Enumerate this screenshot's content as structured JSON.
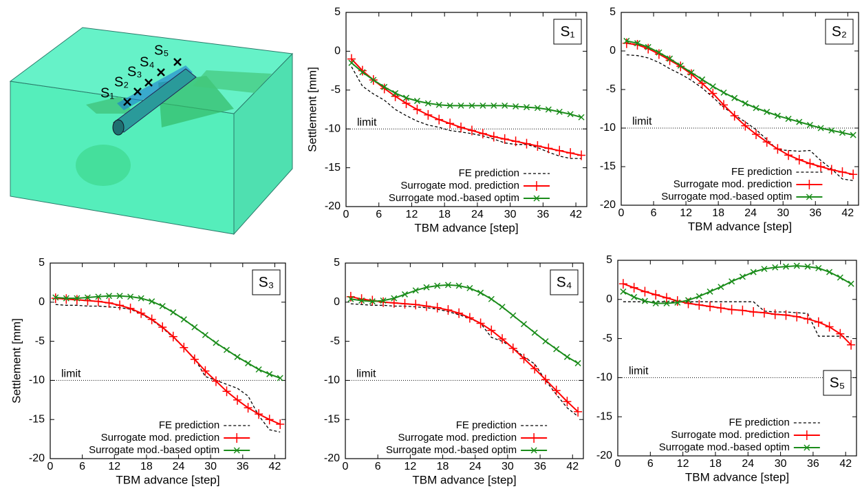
{
  "model": {
    "sensors": [
      "S₁",
      "S₂",
      "S₃",
      "S₄",
      "S₅"
    ]
  },
  "chart_data": [
    {
      "type": "line",
      "panel_label": "S₁",
      "panel_label_corner": "upper right",
      "ylabel": "Settlement [mm]",
      "xlabel": "TBM advance [step]",
      "x": [
        1,
        3,
        5,
        7,
        9,
        11,
        13,
        15,
        17,
        19,
        21,
        23,
        25,
        27,
        29,
        31,
        33,
        35,
        37,
        39,
        41,
        43
      ],
      "xlim": [
        0,
        44
      ],
      "xticks": [
        0,
        6,
        12,
        18,
        24,
        30,
        36,
        42
      ],
      "ylim": [
        -20,
        5
      ],
      "yticks": [
        -20,
        -15,
        -10,
        -5,
        0,
        5
      ],
      "hlines": [
        {
          "value": -10,
          "label": "limit"
        }
      ],
      "legend": "lower center",
      "series": [
        {
          "name": "FE prediction",
          "color": "#000000",
          "style": "dashed",
          "values": [
            -2,
            -4.5,
            -5.5,
            -6.3,
            -7.5,
            -8.3,
            -9,
            -9.5,
            -9.8,
            -10.2,
            -10.4,
            -10.6,
            -10.9,
            -11.3,
            -11.8,
            -12,
            -12,
            -12.4,
            -13,
            -13.5,
            -13.8,
            -13.8
          ]
        },
        {
          "name": "Surrogate mod. prediction",
          "color": "#ff0000",
          "marker": "plus",
          "values": [
            -1,
            -2.5,
            -3.7,
            -4.8,
            -5.8,
            -6.7,
            -7.5,
            -8.2,
            -8.8,
            -9.3,
            -9.8,
            -10.2,
            -10.6,
            -11,
            -11.3,
            -11.6,
            -11.9,
            -12.2,
            -12.5,
            -12.8,
            -13.1,
            -13.4
          ]
        },
        {
          "name": "Surrogate mod.-based optim",
          "color": "#1a8c1a",
          "marker": "cross",
          "values": [
            -1.5,
            -2.7,
            -3.7,
            -4.6,
            -5.4,
            -6,
            -6.4,
            -6.7,
            -6.9,
            -7,
            -7,
            -7,
            -7,
            -7,
            -7,
            -7.1,
            -7.2,
            -7.3,
            -7.5,
            -7.8,
            -8.1,
            -8.5
          ]
        }
      ]
    },
    {
      "type": "line",
      "panel_label": "S₂",
      "panel_label_corner": "upper right",
      "xlabel": "TBM advance [step]",
      "x": [
        1,
        3,
        5,
        7,
        9,
        11,
        13,
        15,
        17,
        19,
        21,
        23,
        25,
        27,
        29,
        31,
        33,
        35,
        37,
        39,
        41,
        43
      ],
      "xlim": [
        0,
        44
      ],
      "xticks": [
        0,
        6,
        12,
        18,
        24,
        30,
        36,
        42
      ],
      "ylim": [
        -20,
        5
      ],
      "yticks": [
        -20,
        -15,
        -10,
        -5,
        0,
        5
      ],
      "hlines": [
        {
          "value": -10,
          "label": "limit"
        }
      ],
      "legend": "lower center",
      "series": [
        {
          "name": "FE prediction",
          "color": "#000000",
          "style": "dashed",
          "values": [
            -0.5,
            -0.6,
            -0.9,
            -1.5,
            -2.3,
            -3,
            -3.8,
            -4.8,
            -6,
            -7.3,
            -8.3,
            -9.2,
            -10.2,
            -11.5,
            -12.8,
            -12.9,
            -13,
            -12.9,
            -14.2,
            -15.3,
            -16.6,
            -16.8
          ]
        },
        {
          "name": "Surrogate mod. prediction",
          "color": "#ff0000",
          "marker": "plus",
          "values": [
            1,
            0.8,
            0.3,
            -0.4,
            -1.2,
            -2,
            -3,
            -4.2,
            -5.5,
            -7,
            -8.4,
            -9.7,
            -10.8,
            -11.8,
            -12.7,
            -13.5,
            -14.1,
            -14.6,
            -15,
            -15.4,
            -15.7,
            -16
          ]
        },
        {
          "name": "Surrogate mod.-based optim",
          "color": "#1a8c1a",
          "marker": "cross",
          "values": [
            1.3,
            1,
            0.5,
            -0.2,
            -1,
            -1.9,
            -2.8,
            -3.7,
            -4.6,
            -5.4,
            -6.1,
            -6.8,
            -7.4,
            -7.9,
            -8.4,
            -8.8,
            -9.2,
            -9.6,
            -10,
            -10.3,
            -10.6,
            -10.9
          ]
        }
      ]
    },
    {
      "type": "line",
      "panel_label": "S₃",
      "panel_label_corner": "upper right",
      "ylabel": "Settlement [mm]",
      "xlabel": "TBM advance [step]",
      "x": [
        1,
        3,
        5,
        7,
        9,
        11,
        13,
        15,
        17,
        19,
        21,
        23,
        25,
        27,
        29,
        31,
        33,
        35,
        37,
        39,
        41,
        43
      ],
      "xlim": [
        0,
        44
      ],
      "xticks": [
        0,
        6,
        12,
        18,
        24,
        30,
        36,
        42
      ],
      "ylim": [
        -20,
        5
      ],
      "yticks": [
        -20,
        -15,
        -10,
        -5,
        0,
        5
      ],
      "hlines": [
        {
          "value": -10,
          "label": "limit"
        }
      ],
      "legend": "lower center",
      "series": [
        {
          "name": "FE prediction",
          "color": "#000000",
          "style": "dashed",
          "values": [
            -0.3,
            -0.4,
            -0.4,
            -0.5,
            -0.5,
            -0.6,
            -0.7,
            -0.9,
            -1.5,
            -2.3,
            -3.3,
            -4.5,
            -5.8,
            -7.2,
            -9.5,
            -10,
            -10.5,
            -11,
            -12,
            -14.5,
            -16.3,
            -16.6
          ]
        },
        {
          "name": "Surrogate mod. prediction",
          "color": "#ff0000",
          "marker": "plus",
          "values": [
            0.5,
            0.4,
            0.3,
            0.2,
            0.1,
            -0.1,
            -0.4,
            -0.8,
            -1.4,
            -2.2,
            -3.2,
            -4.4,
            -5.8,
            -7.3,
            -8.8,
            -10.1,
            -11.4,
            -12.5,
            -13.5,
            -14.3,
            -15,
            -15.6
          ]
        },
        {
          "name": "Surrogate mod.-based optim",
          "color": "#1a8c1a",
          "marker": "cross",
          "values": [
            0.6,
            0.5,
            0.5,
            0.6,
            0.7,
            0.8,
            0.8,
            0.7,
            0.5,
            0.1,
            -0.5,
            -1.3,
            -2.2,
            -3.2,
            -4.2,
            -5.2,
            -6.1,
            -7,
            -7.8,
            -8.6,
            -9.2,
            -9.7
          ]
        }
      ]
    },
    {
      "type": "line",
      "panel_label": "S₄",
      "panel_label_corner": "upper right",
      "xlabel": "TBM advance [step]",
      "x": [
        1,
        3,
        5,
        7,
        9,
        11,
        13,
        15,
        17,
        19,
        21,
        23,
        25,
        27,
        29,
        31,
        33,
        35,
        37,
        39,
        41,
        43
      ],
      "xlim": [
        0,
        44
      ],
      "xticks": [
        0,
        6,
        12,
        18,
        24,
        30,
        36,
        42
      ],
      "ylim": [
        -20,
        5
      ],
      "yticks": [
        -20,
        -15,
        -10,
        -5,
        0,
        5
      ],
      "hlines": [
        {
          "value": -10,
          "label": "limit"
        }
      ],
      "legend": "lower center",
      "series": [
        {
          "name": "FE prediction",
          "color": "#000000",
          "style": "dashed",
          "values": [
            -0.2,
            -0.3,
            -0.4,
            -0.4,
            -0.5,
            -0.5,
            -0.6,
            -0.7,
            -0.9,
            -1.2,
            -1.6,
            -2.1,
            -2.7,
            -4.5,
            -5,
            -5.8,
            -7,
            -7.9,
            -10,
            -11.8,
            -13.5,
            -14.6
          ]
        },
        {
          "name": "Surrogate mod. prediction",
          "color": "#ff0000",
          "marker": "plus",
          "values": [
            0.7,
            0.4,
            0.2,
            0,
            -0.1,
            -0.2,
            -0.3,
            -0.5,
            -0.7,
            -1,
            -1.4,
            -2,
            -2.7,
            -3.6,
            -4.7,
            -5.9,
            -7.2,
            -8.5,
            -9.9,
            -11.3,
            -12.7,
            -14
          ]
        },
        {
          "name": "Surrogate mod.-based optim",
          "color": "#1a8c1a",
          "marker": "cross",
          "values": [
            0.4,
            0.2,
            0.1,
            0.2,
            0.5,
            1,
            1.5,
            1.9,
            2.1,
            2.2,
            2.1,
            1.8,
            1.2,
            0.4,
            -0.6,
            -1.7,
            -2.8,
            -3.9,
            -5,
            -6,
            -7,
            -7.8
          ]
        }
      ]
    },
    {
      "type": "line",
      "panel_label": "S₅",
      "panel_label_corner": "lower right",
      "xlabel": "TBM advance [step]",
      "x": [
        1,
        3,
        5,
        7,
        9,
        11,
        13,
        15,
        17,
        19,
        21,
        23,
        25,
        27,
        29,
        31,
        33,
        35,
        37,
        39,
        41,
        43
      ],
      "xlim": [
        0,
        44
      ],
      "xticks": [
        0,
        6,
        12,
        18,
        24,
        30,
        36,
        42
      ],
      "ylim": [
        -20,
        5
      ],
      "yticks": [
        -20,
        -15,
        -10,
        -5,
        0,
        5
      ],
      "hlines": [
        {
          "value": -10,
          "label": "limit"
        }
      ],
      "legend": "lower center",
      "series": [
        {
          "name": "FE prediction",
          "color": "#000000",
          "style": "dashed",
          "values": [
            -0.3,
            -0.3,
            -0.3,
            -0.3,
            -0.3,
            -0.3,
            -0.3,
            -0.3,
            -0.3,
            -0.3,
            -0.3,
            -0.3,
            -0.3,
            -1.5,
            -1.6,
            -1.6,
            -1.7,
            -1.8,
            -4.7,
            -4.7,
            -4.7,
            -4.8
          ]
        },
        {
          "name": "Surrogate mod. prediction",
          "color": "#ff0000",
          "marker": "plus",
          "values": [
            2,
            1.5,
            1,
            0.6,
            0.2,
            -0.2,
            -0.5,
            -0.7,
            -0.9,
            -1.1,
            -1.3,
            -1.4,
            -1.6,
            -1.7,
            -1.9,
            -2,
            -2.2,
            -2.5,
            -2.9,
            -3.5,
            -4.4,
            -5.8
          ]
        },
        {
          "name": "Surrogate mod.-based optim",
          "color": "#1a8c1a",
          "marker": "cross",
          "values": [
            1,
            0.3,
            -0.2,
            -0.5,
            -0.5,
            -0.4,
            -0.1,
            0.4,
            1,
            1.6,
            2.3,
            2.9,
            3.5,
            3.9,
            4.1,
            4.2,
            4.3,
            4.2,
            4,
            3.5,
            2.8,
            2
          ]
        }
      ]
    }
  ]
}
